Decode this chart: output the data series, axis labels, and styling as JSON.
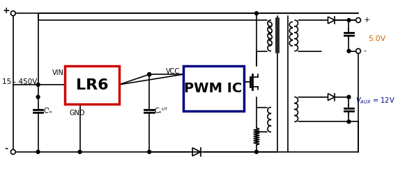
{
  "title": "",
  "bg_color": "#ffffff",
  "line_color": "#000000",
  "lr6_box_color": "#cc0000",
  "pwmic_box_color": "#000080",
  "lr6_label": "LR6",
  "pwmic_label": "PWM IC",
  "vin_label": "VIN",
  "gnd_label": "GND",
  "vcc_label": "VCC",
  "cin_label": "Cⁱₙ",
  "cout_label": "Cₒᵁᵀ",
  "voltage_label": "15 - 450V",
  "v5_label": "5.0V",
  "vaux_label": "Vₐᵁˣ = 12V",
  "plus_color": "#cc0000",
  "minus_color": "#cc0000",
  "vaux_color": "#000080"
}
